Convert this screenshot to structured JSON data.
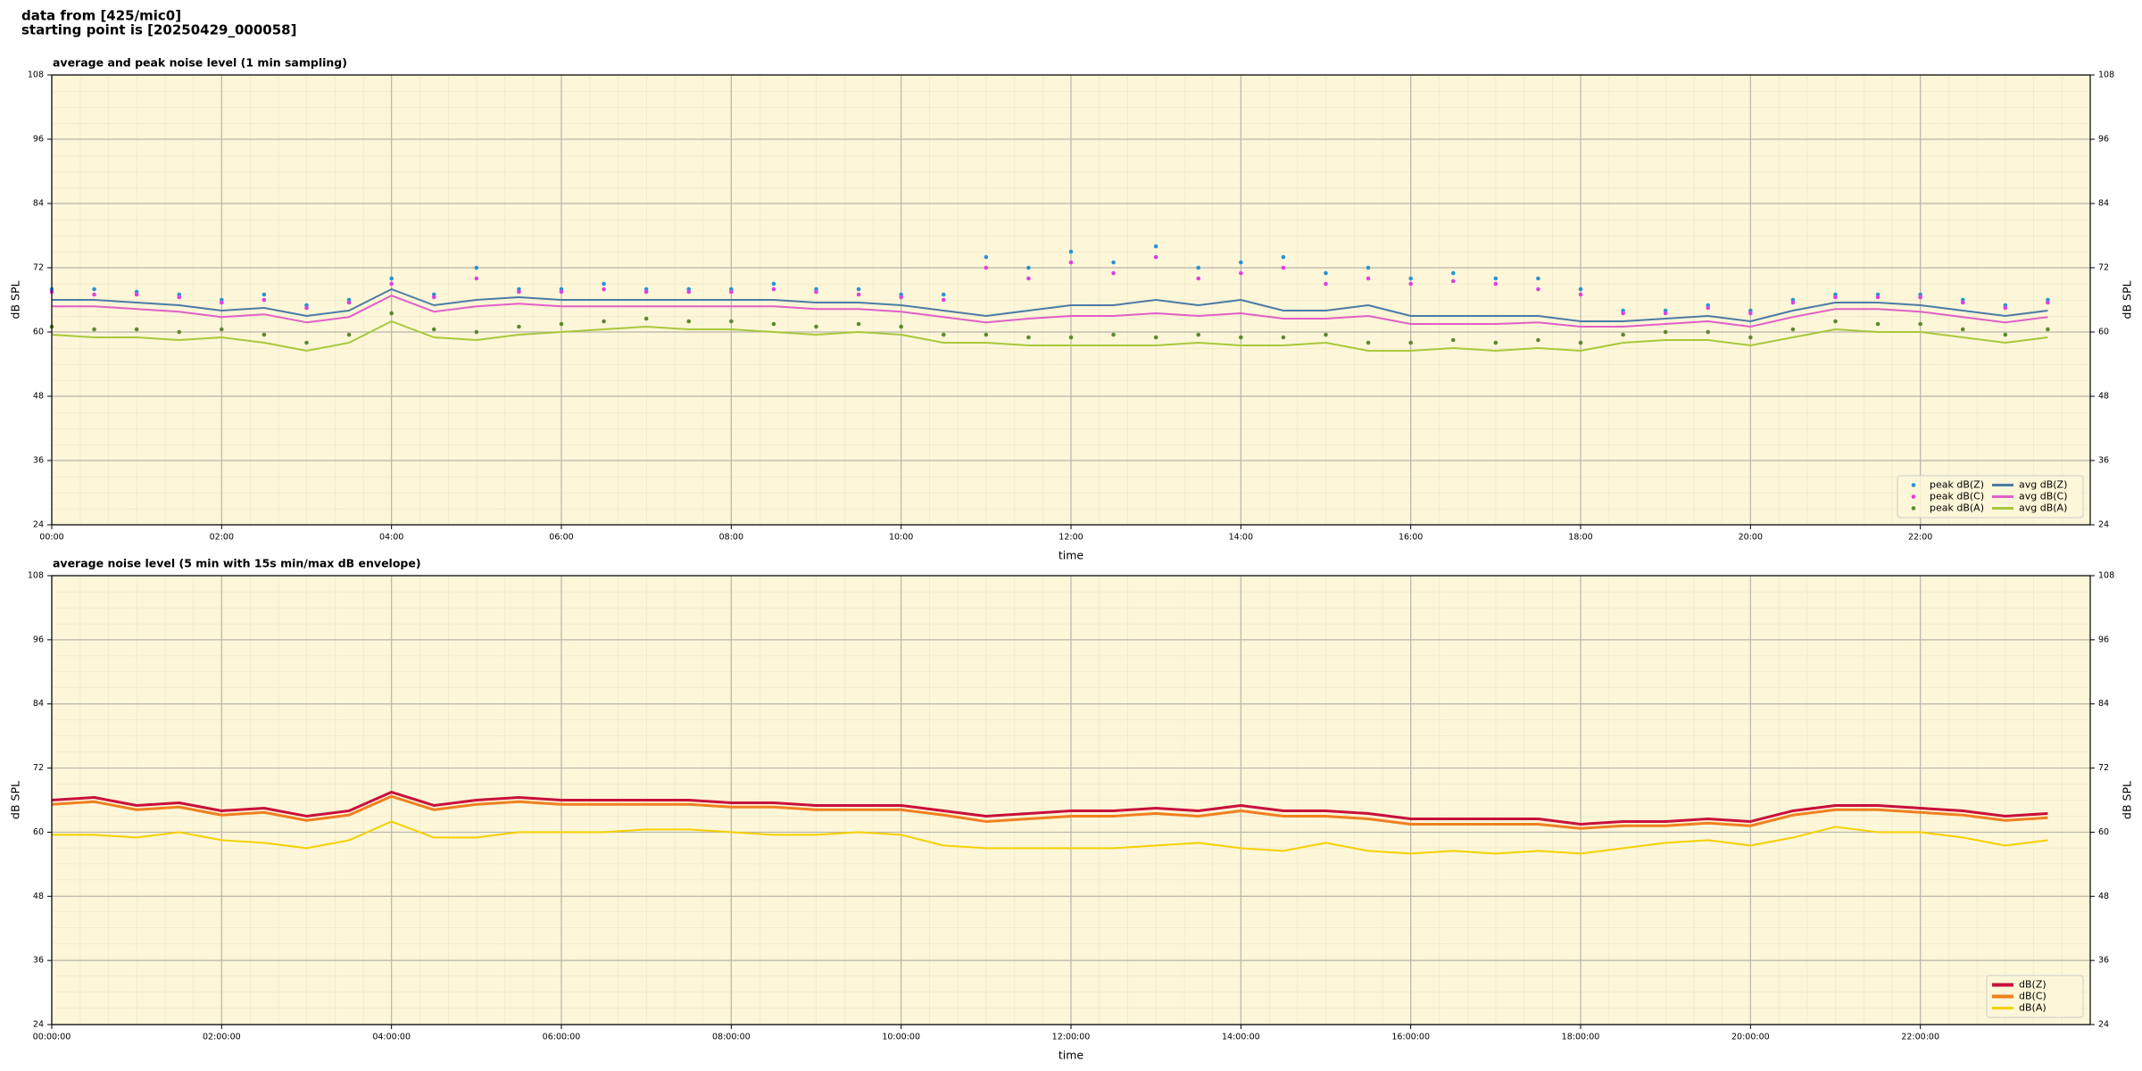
{
  "header": {
    "lines": [
      "data from [425/mic0]",
      "starting point is [20250429_000058]"
    ]
  },
  "chart_data": [
    {
      "type": "line",
      "title": "average and peak noise level (1 min sampling)",
      "x_label": "time",
      "y_label": "dB SPL",
      "y2_label": "dB SPL",
      "background": "#fdf6d8",
      "grid": true,
      "legend": "lower right",
      "legend_columns": 2,
      "xlim": [
        0,
        24
      ],
      "xticks": [
        {
          "value": 0,
          "label": "00:00"
        },
        {
          "value": 2,
          "label": "02:00"
        },
        {
          "value": 4,
          "label": "04:00"
        },
        {
          "value": 6,
          "label": "06:00"
        },
        {
          "value": 8,
          "label": "08:00"
        },
        {
          "value": 10,
          "label": "10:00"
        },
        {
          "value": 12,
          "label": "12:00"
        },
        {
          "value": 14,
          "label": "14:00"
        },
        {
          "value": 16,
          "label": "16:00"
        },
        {
          "value": 18,
          "label": "18:00"
        },
        {
          "value": 20,
          "label": "20:00"
        },
        {
          "value": 22,
          "label": "22:00"
        }
      ],
      "ylim": [
        24,
        108
      ],
      "yticks": [
        24,
        36,
        48,
        60,
        72,
        84,
        96,
        108
      ],
      "y2lim": [
        24,
        108
      ],
      "y2ticks": [
        24,
        36,
        48,
        60,
        72,
        84,
        96,
        108
      ],
      "x": [
        0,
        0.5,
        1,
        1.5,
        2,
        2.5,
        3,
        3.5,
        4,
        4.5,
        5,
        5.5,
        6,
        6.5,
        7,
        7.5,
        8,
        8.5,
        9,
        9.5,
        10,
        10.5,
        11,
        11.5,
        12,
        12.5,
        13,
        13.5,
        14,
        14.5,
        15,
        15.5,
        16,
        16.5,
        17,
        17.5,
        18,
        18.5,
        19,
        19.5,
        20,
        20.5,
        21,
        21.5,
        22,
        22.5,
        23,
        23.5
      ],
      "series": [
        {
          "name": "peak dB(Z)",
          "type": "scatter",
          "color": "#2a93d5",
          "values": [
            68,
            68,
            67.5,
            67,
            66,
            67,
            65,
            66,
            70,
            67,
            72,
            68,
            68,
            69,
            68,
            68,
            68,
            69,
            68,
            68,
            67,
            67,
            74,
            72,
            75,
            73,
            76,
            72,
            73,
            74,
            71,
            72,
            70,
            71,
            70,
            70,
            68,
            64,
            64,
            65,
            64,
            66,
            67,
            67,
            67,
            66,
            65,
            66
          ]
        },
        {
          "name": "peak dB(C)",
          "type": "scatter",
          "color": "#e040e0",
          "values": [
            67.5,
            67,
            67,
            66.5,
            65.5,
            66,
            64.5,
            65.5,
            69,
            66.5,
            70,
            67.5,
            67.5,
            68,
            67.5,
            67.5,
            67.5,
            68,
            67.5,
            67,
            66.5,
            66,
            72,
            70,
            73,
            71,
            74,
            70,
            71,
            72,
            69,
            70,
            69,
            69.5,
            69,
            68,
            67,
            63.5,
            63.5,
            64.5,
            63.5,
            65.5,
            66.5,
            66.5,
            66.5,
            65.5,
            64.5,
            65.5
          ]
        },
        {
          "name": "peak dB(A)",
          "type": "scatter",
          "color": "#5c8a30",
          "values": [
            61,
            60.5,
            60.5,
            60,
            60.5,
            59.5,
            58,
            59.5,
            63.5,
            60.5,
            60,
            61,
            61.5,
            62,
            62.5,
            62,
            62,
            61.5,
            61,
            61.5,
            61,
            59.5,
            59.5,
            59,
            59,
            59.5,
            59,
            59.5,
            59,
            59,
            59.5,
            58,
            58,
            58.5,
            58,
            58.5,
            58,
            59.5,
            60,
            60,
            59,
            60.5,
            62,
            61.5,
            61.5,
            60.5,
            59.5,
            60.5
          ]
        },
        {
          "name": "avg dB(Z)",
          "type": "line",
          "color": "#4b7ba6",
          "line_width": 2,
          "values": [
            66,
            66,
            65.5,
            65,
            64,
            64.5,
            63,
            64,
            68,
            65,
            66,
            66.5,
            66,
            66,
            66,
            66,
            66,
            66,
            65.5,
            65.5,
            65,
            64,
            63,
            64,
            65,
            65,
            66,
            65,
            66,
            64,
            64,
            65,
            63,
            63,
            63,
            63,
            62,
            62,
            62.5,
            63,
            62,
            64,
            65.5,
            65.5,
            65,
            64,
            63,
            64
          ]
        },
        {
          "name": "avg dB(C)",
          "type": "line",
          "color": "#e060c8",
          "line_width": 2,
          "values": [
            64.8,
            64.8,
            64.3,
            63.8,
            62.8,
            63.3,
            61.8,
            62.8,
            66.8,
            63.8,
            64.8,
            65.3,
            64.8,
            64.8,
            64.8,
            64.8,
            64.8,
            64.8,
            64.3,
            64.3,
            63.8,
            62.8,
            61.8,
            62.5,
            63,
            63,
            63.5,
            63,
            63.5,
            62.5,
            62.5,
            63,
            61.5,
            61.5,
            61.5,
            61.8,
            61,
            61,
            61.5,
            62,
            61,
            62.8,
            64.3,
            64.3,
            63.8,
            62.8,
            61.8,
            62.8
          ]
        },
        {
          "name": "avg dB(A)",
          "type": "line",
          "color": "#a8c83c",
          "line_width": 2,
          "values": [
            59.5,
            59,
            59,
            58.5,
            59,
            58,
            56.5,
            58,
            62,
            59,
            58.5,
            59.5,
            60,
            60.5,
            61,
            60.5,
            60.5,
            60,
            59.5,
            60,
            59.5,
            58,
            58,
            57.5,
            57.5,
            57.5,
            57.5,
            58,
            57.5,
            57.5,
            58,
            56.5,
            56.5,
            57,
            56.5,
            57,
            56.5,
            58,
            58.5,
            58.5,
            57.5,
            59,
            60.5,
            60,
            60,
            59,
            58,
            59
          ]
        }
      ]
    },
    {
      "type": "line",
      "title": "average noise level (5 min with 15s min/max dB envelope)",
      "x_label": "time",
      "y_label": "dB SPL",
      "y2_label": "dB SPL",
      "background": "#fdf6d8",
      "grid": true,
      "legend": "lower right",
      "legend_columns": 1,
      "xlim": [
        0,
        24
      ],
      "xticks": [
        {
          "value": 0,
          "label": "00:00:00"
        },
        {
          "value": 2,
          "label": "02:00:00"
        },
        {
          "value": 4,
          "label": "04:00:00"
        },
        {
          "value": 6,
          "label": "06:00:00"
        },
        {
          "value": 8,
          "label": "08:00:00"
        },
        {
          "value": 10,
          "label": "10:00:00"
        },
        {
          "value": 12,
          "label": "12:00:00"
        },
        {
          "value": 14,
          "label": "14:00:00"
        },
        {
          "value": 16,
          "label": "16:00:00"
        },
        {
          "value": 18,
          "label": "18:00:00"
        },
        {
          "value": 20,
          "label": "20:00:00"
        },
        {
          "value": 22,
          "label": "22:00:00"
        }
      ],
      "ylim": [
        24,
        108
      ],
      "yticks": [
        24,
        36,
        48,
        60,
        72,
        84,
        96,
        108
      ],
      "y2lim": [
        24,
        108
      ],
      "y2ticks": [
        24,
        36,
        48,
        60,
        72,
        84,
        96,
        108
      ],
      "x": [
        0,
        0.5,
        1,
        1.5,
        2,
        2.5,
        3,
        3.5,
        4,
        4.5,
        5,
        5.5,
        6,
        6.5,
        7,
        7.5,
        8,
        8.5,
        9,
        9.5,
        10,
        10.5,
        11,
        11.5,
        12,
        12.5,
        13,
        13.5,
        14,
        14.5,
        15,
        15.5,
        16,
        16.5,
        17,
        17.5,
        18,
        18.5,
        19,
        19.5,
        20,
        20.5,
        21,
        21.5,
        22,
        22.5,
        23,
        23.5
      ],
      "series": [
        {
          "name": "dB(Z)",
          "type": "line",
          "color": "#c8103c",
          "line_width": 3,
          "values": [
            66,
            66.5,
            65,
            65.5,
            64,
            64.5,
            63,
            64,
            67.5,
            65,
            66,
            66.5,
            66,
            66,
            66,
            66,
            65.5,
            65.5,
            65,
            65,
            65,
            64,
            63,
            63.5,
            64,
            64,
            64.5,
            64,
            65,
            64,
            64,
            63.5,
            62.5,
            62.5,
            62.5,
            62.5,
            61.5,
            62,
            62,
            62.5,
            62,
            64,
            65,
            65,
            64.5,
            64,
            63,
            63.5
          ]
        },
        {
          "name": "dB(C)",
          "type": "line",
          "color": "#f08020",
          "line_width": 3,
          "values": [
            65.2,
            65.7,
            64.2,
            64.7,
            63.2,
            63.7,
            62.2,
            63.2,
            66.7,
            64.2,
            65.2,
            65.7,
            65.2,
            65.2,
            65.2,
            65.2,
            64.7,
            64.7,
            64.2,
            64.2,
            64.2,
            63.2,
            62,
            62.5,
            63,
            63,
            63.5,
            63,
            64,
            63,
            63,
            62.5,
            61.5,
            61.5,
            61.5,
            61.5,
            60.7,
            61.2,
            61.2,
            61.7,
            61.2,
            63.2,
            64.2,
            64.2,
            63.7,
            63.2,
            62.2,
            62.7
          ]
        },
        {
          "name": "dB(A)",
          "type": "line",
          "color": "#f5d000",
          "line_width": 2,
          "values": [
            59.5,
            59.5,
            59,
            60,
            58.5,
            58,
            57,
            58.5,
            62,
            59,
            59,
            60,
            60,
            60,
            60.5,
            60.5,
            60,
            59.5,
            59.5,
            60,
            59.5,
            57.5,
            57,
            57,
            57,
            57,
            57.5,
            58,
            57,
            56.5,
            58,
            56.5,
            56,
            56.5,
            56,
            56.5,
            56,
            57,
            58,
            58.5,
            57.5,
            59,
            61,
            60,
            60,
            59,
            57.5,
            58.5
          ]
        }
      ]
    }
  ]
}
